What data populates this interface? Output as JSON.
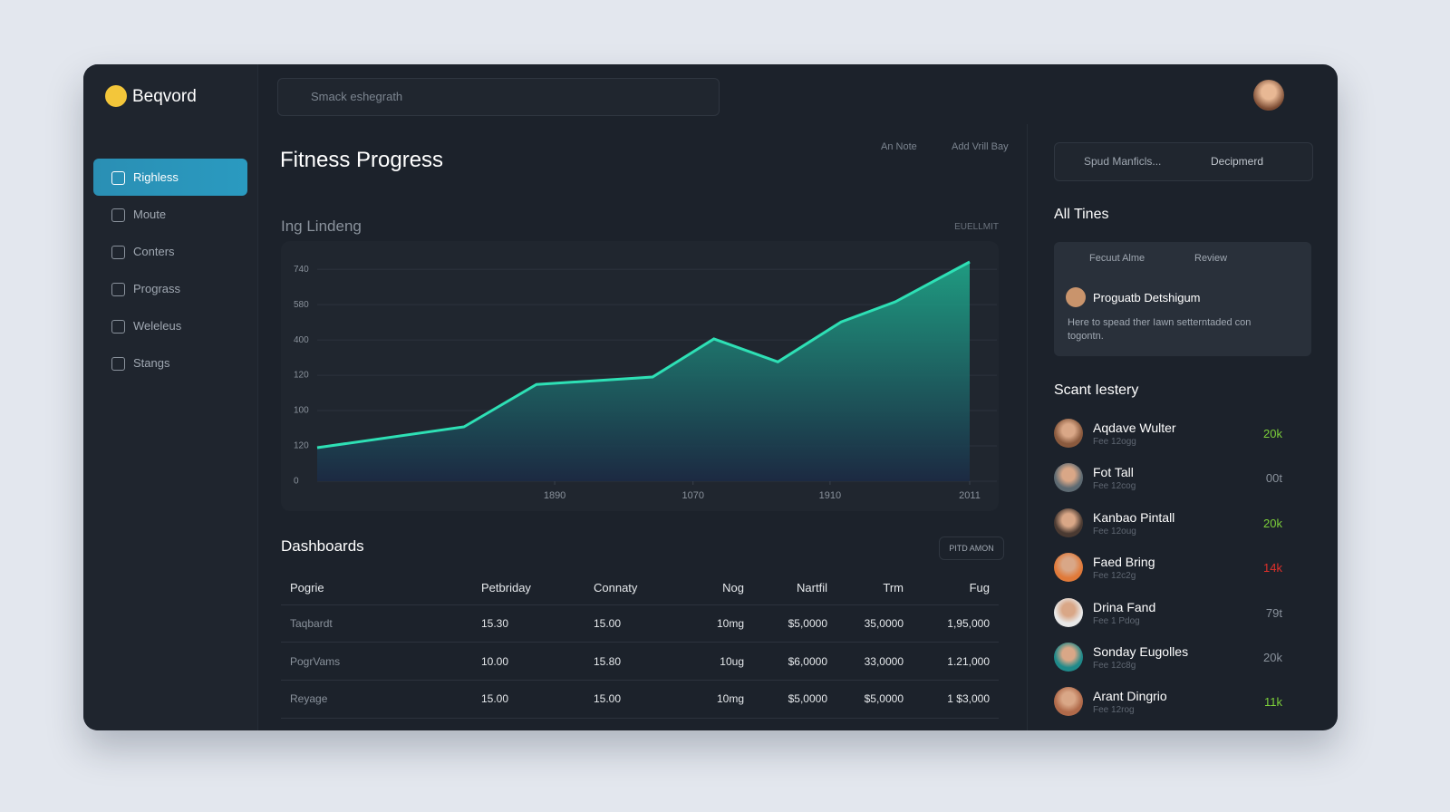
{
  "brand": "Beqvord",
  "search_placeholder": "Smack eshegrath",
  "sidebar": {
    "items": [
      {
        "label": "Righless",
        "active": true
      },
      {
        "label": "Moute"
      },
      {
        "label": "Conters"
      },
      {
        "label": "Prograss"
      },
      {
        "label": "Weleleus"
      },
      {
        "label": "Stangs"
      }
    ]
  },
  "main": {
    "title": "Fitness Progress",
    "filters": [
      "An Note",
      "Add Vrill Bay"
    ]
  },
  "chart_data": {
    "type": "area",
    "title": "Ing Lindeng",
    "annotation": "EUELLMIT",
    "x": [
      0,
      22.5,
      33.6,
      51.4,
      60.8,
      70.6,
      80.3,
      88.6,
      100
    ],
    "values": [
      0.95,
      1.54,
      2.74,
      2.95,
      4.03,
      3.38,
      4.51,
      5.08,
      6.21
    ],
    "color": "#2ee0b5",
    "xlim": [
      0,
      100
    ],
    "xticks": [
      {
        "value": 36.4,
        "label": "1890"
      },
      {
        "value": 57.6,
        "label": "1070"
      },
      {
        "value": 78.6,
        "label": "1910"
      },
      {
        "value": 100,
        "label": "2011"
      }
    ],
    "ylim": [
      0,
      6.8
    ],
    "yticks": [
      0,
      {
        "value": 1,
        "label": "120"
      },
      {
        "value": 2,
        "label": "100"
      },
      {
        "value": 3,
        "label": "120"
      },
      {
        "value": 4,
        "label": "400"
      },
      {
        "value": 5,
        "label": "580"
      },
      {
        "value": 6,
        "label": "740"
      }
    ],
    "grid": true
  },
  "table": {
    "title": "Dashboards",
    "button": "PITD AMON",
    "columns": [
      "Pogrie",
      "Petbriday",
      "Connaty",
      "Nog",
      "Nartfil",
      "Trm",
      "Fug"
    ],
    "rows": [
      [
        "Taqbardt",
        "15.30",
        "15.00",
        "10mg",
        "$5,0000",
        "35,0000",
        "1,95,000"
      ],
      [
        "PogrVams",
        "10.00",
        "15.80",
        "10ug",
        "$6,0000",
        "33,0000",
        "1.21,000"
      ],
      [
        "Reyage",
        "15.00",
        "15.00",
        "10mg",
        "$5,0000",
        "$5,0000",
        "1 $3,000"
      ]
    ]
  },
  "right": {
    "search": "Spud Manficls...",
    "dropdown": "Decipmerd",
    "all_times": {
      "title": "All Tines",
      "tabs": [
        "Fecuut Alme",
        "Review"
      ],
      "card": {
        "name": "Proguatb Detshigum",
        "text": "Here to spead ther Iawn setterntaded con togontn."
      }
    },
    "list": {
      "title": "Scant Iestery",
      "items": [
        {
          "name": "Aqdave Wulter",
          "sub": "Fee 12ogg",
          "value": "20k",
          "color": "#7ccf3a"
        },
        {
          "name": "Fot Tall",
          "sub": "Fee 12cog",
          "value": "00t",
          "color": "#8a929c"
        },
        {
          "name": "Kanbao Pintall",
          "sub": "Fee 12oug",
          "value": "20k",
          "color": "#7ccf3a"
        },
        {
          "name": "Faed Bring",
          "sub": "Fee 12c2g",
          "value": "14k",
          "color": "#e0302a"
        },
        {
          "name": "Drina Fand",
          "sub": "Fee 1 Pdog",
          "value": "79t",
          "color": "#8a929c"
        },
        {
          "name": "Sonday Eugolles",
          "sub": "Fee 12c8g",
          "value": "20k",
          "color": "#8a929c"
        },
        {
          "name": "Arant Dingrio",
          "sub": "Fee 12rog",
          "value": "11k",
          "color": "#7ccf3a"
        }
      ]
    }
  }
}
